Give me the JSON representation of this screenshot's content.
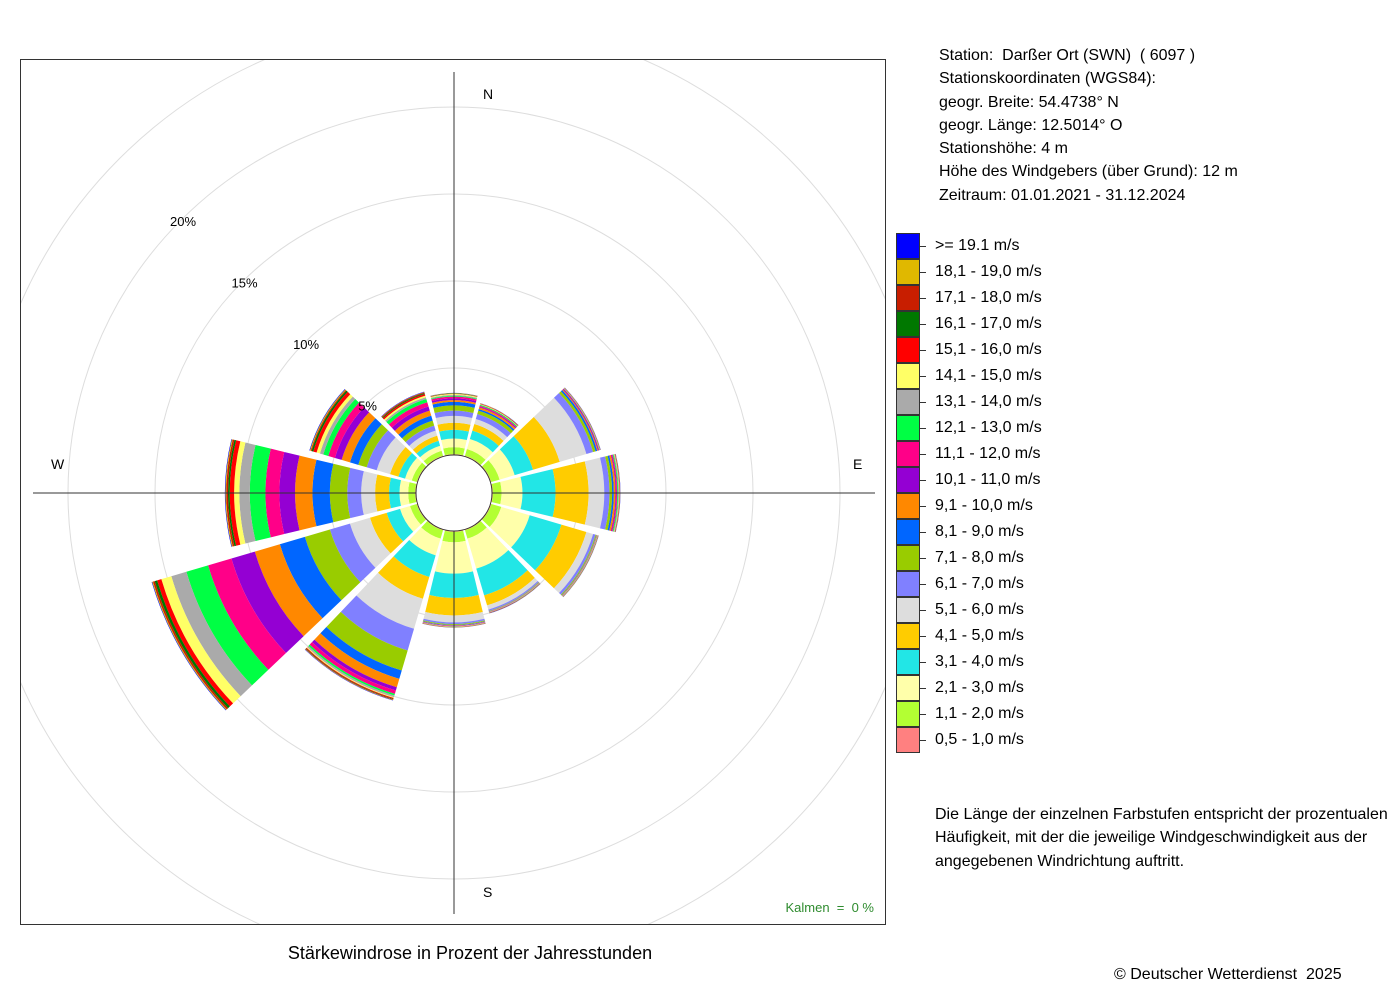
{
  "station_info": {
    "station": "Station:  Darßer Ort (SWN)  ( 6097 )",
    "coords_header": "Stationskoordinaten (WGS84):",
    "lat": "geogr. Breite: 54.4738° N",
    "lon": "geogr. Länge: 12.5014° O",
    "elevation": "Stationshöhe: 4 m",
    "sensor_height": "Höhe des Windgebers (über Grund): 12 m",
    "period": "Zeitraum: 01.01.2021 - 31.12.2024"
  },
  "legend": [
    {
      "label": ">= 19.1 m/s",
      "color": "#0000ff"
    },
    {
      "label": "18,1 - 19,0 m/s",
      "color": "#e0b800"
    },
    {
      "label": "17,1 - 18,0 m/s",
      "color": "#c81e00"
    },
    {
      "label": "16,1 - 17,0 m/s",
      "color": "#007800"
    },
    {
      "label": "15,1 - 16,0 m/s",
      "color": "#ff0000"
    },
    {
      "label": "14,1 - 15,0 m/s",
      "color": "#ffff66"
    },
    {
      "label": "13,1 - 14,0 m/s",
      "color": "#aaaaaa"
    },
    {
      "label": "12,1 - 13,0 m/s",
      "color": "#00ff44"
    },
    {
      "label": "11,1 - 12,0 m/s",
      "color": "#ff0088"
    },
    {
      "label": "10,1 - 11,0 m/s",
      "color": "#9400d3"
    },
    {
      "label": "9,1 - 10,0 m/s",
      "color": "#ff8800"
    },
    {
      "label": "8,1 - 9,0 m/s",
      "color": "#0066ff"
    },
    {
      "label": "7,1 - 8,0 m/s",
      "color": "#99cc00"
    },
    {
      "label": "6,1 - 7,0 m/s",
      "color": "#8080ff"
    },
    {
      "label": "5,1 - 6,0 m/s",
      "color": "#dddddd"
    },
    {
      "label": "4,1 - 5,0 m/s",
      "color": "#ffcc00"
    },
    {
      "label": "3,1 - 4,0 m/s",
      "color": "#22e6e6"
    },
    {
      "label": "2,1 - 3,0 m/s",
      "color": "#ffffaa"
    },
    {
      "label": "1,1 - 2,0 m/s",
      "color": "#b3ff33"
    },
    {
      "label": "0,5 - 1,0 m/s",
      "color": "#ff8080"
    }
  ],
  "note": "Die Länge der einzelnen Farbstufen entspricht der prozentualen Häufigkeit, mit der die jeweilige Windgeschwindigkeit aus der angegebenen Windrichtung auftritt.",
  "copyright": "© Deutscher Wetterdienst  2025",
  "chart_data": {
    "type": "windrose",
    "title": "Stärkewindrose in Prozent der Jahresstunden",
    "calm_label": "Kalmen  =  0 %",
    "compass_labels": [
      "N",
      "E",
      "S",
      "W"
    ],
    "radial_ticks": [
      5,
      10,
      15,
      20
    ],
    "radial_tick_labels": [
      "5%",
      "10%",
      "15%",
      "20%"
    ],
    "sector_width_deg": 30,
    "speed_classes": [
      "0,5 - 1,0 m/s",
      "1,1 - 2,0 m/s",
      "2,1 - 3,0 m/s",
      "3,1 - 4,0 m/s",
      "4,1 - 5,0 m/s",
      "5,1 - 6,0 m/s",
      "6,1 - 7,0 m/s",
      "7,1 - 8,0 m/s",
      "8,1 - 9,0 m/s",
      "9,1 - 10,0 m/s",
      "10,1 - 11,0 m/s",
      "11,1 - 12,0 m/s",
      "12,1 - 13,0 m/s",
      "13,1 - 14,0 m/s",
      "14,1 - 15,0 m/s",
      "15,1 - 16,0 m/s",
      "16,1 - 17,0 m/s",
      "17,1 - 18,0 m/s",
      "18,1 - 19,0 m/s",
      ">= 19.1 m/s"
    ],
    "sectors": [
      {
        "direction_deg": 0,
        "values": [
          0.05,
          0.4,
          0.5,
          0.5,
          0.4,
          0.4,
          0.3,
          0.3,
          0.2,
          0.1,
          0.1,
          0.1,
          0.05,
          0.05,
          0.05,
          0.02,
          0.02,
          0.01,
          0.01,
          0.01
        ]
      },
      {
        "direction_deg": 30,
        "values": [
          0.05,
          0.4,
          0.6,
          0.5,
          0.4,
          0.3,
          0.3,
          0.2,
          0.1,
          0.1,
          0.05,
          0.05,
          0.05,
          0.02,
          0.02,
          0.02,
          0.01,
          0.01,
          0.01,
          0.01
        ]
      },
      {
        "direction_deg": 60,
        "values": [
          0.05,
          0.5,
          0.9,
          1.1,
          1.6,
          1.6,
          0.4,
          0.15,
          0.1,
          0.05,
          0.05,
          0.02,
          0.02,
          0.01,
          0.01,
          0.01,
          0.01,
          0.01,
          0.01,
          0.01
        ]
      },
      {
        "direction_deg": 90,
        "values": [
          0.05,
          0.5,
          1.2,
          1.9,
          1.9,
          0.9,
          0.3,
          0.15,
          0.1,
          0.1,
          0.05,
          0.05,
          0.05,
          0.05,
          0.02,
          0.02,
          0.01,
          0.01,
          0.01,
          0.01
        ]
      },
      {
        "direction_deg": 120,
        "values": [
          0.05,
          0.6,
          1.7,
          1.9,
          1.5,
          0.4,
          0.15,
          0.05,
          0.02,
          0.02,
          0.01,
          0.01,
          0.01,
          0.01,
          0.01,
          0.01,
          0.01,
          0.01,
          0.01,
          0.01
        ]
      },
      {
        "direction_deg": 150,
        "values": [
          0.05,
          0.5,
          1.8,
          1.6,
          0.6,
          0.25,
          0.08,
          0.03,
          0.01,
          0.01,
          0.01,
          0.01,
          0.01,
          0.01,
          0.01,
          0.01,
          0.01,
          0.01,
          0.01,
          0.01
        ]
      },
      {
        "direction_deg": 180,
        "values": [
          0.05,
          0.6,
          1.8,
          1.4,
          1.0,
          0.4,
          0.1,
          0.05,
          0.02,
          0.02,
          0.02,
          0.01,
          0.01,
          0.01,
          0.01,
          0.01,
          0.01,
          0.01,
          0.01,
          0.01
        ]
      },
      {
        "direction_deg": 210,
        "values": [
          0.05,
          0.5,
          1.0,
          1.3,
          1.3,
          1.8,
          1.3,
          1.2,
          0.5,
          0.5,
          0.2,
          0.2,
          0.1,
          0.1,
          0.05,
          0.05,
          0.03,
          0.03,
          0.02,
          0.02
        ]
      },
      {
        "direction_deg": 240,
        "values": [
          0.05,
          0.4,
          0.6,
          0.8,
          1.0,
          1.2,
          1.2,
          1.5,
          1.5,
          1.5,
          1.4,
          1.4,
          1.3,
          0.9,
          0.6,
          0.25,
          0.15,
          0.1,
          0.05,
          0.03
        ]
      },
      {
        "direction_deg": 270,
        "values": [
          0.05,
          0.4,
          0.5,
          0.6,
          0.8,
          0.8,
          0.8,
          1.0,
          1.0,
          1.0,
          0.9,
          0.8,
          0.9,
          0.6,
          0.3,
          0.25,
          0.1,
          0.1,
          0.05,
          0.03
        ]
      },
      {
        "direction_deg": 300,
        "values": [
          0.05,
          0.3,
          0.4,
          0.4,
          0.5,
          0.8,
          0.6,
          0.5,
          0.5,
          0.5,
          0.4,
          0.4,
          0.3,
          0.2,
          0.2,
          0.2,
          0.1,
          0.05,
          0.05,
          0.03
        ]
      },
      {
        "direction_deg": 330,
        "values": [
          0.05,
          0.3,
          0.3,
          0.3,
          0.3,
          0.3,
          0.3,
          0.3,
          0.3,
          0.3,
          0.25,
          0.25,
          0.2,
          0.1,
          0.1,
          0.1,
          0.05,
          0.05,
          0.02,
          0.02
        ]
      }
    ]
  }
}
